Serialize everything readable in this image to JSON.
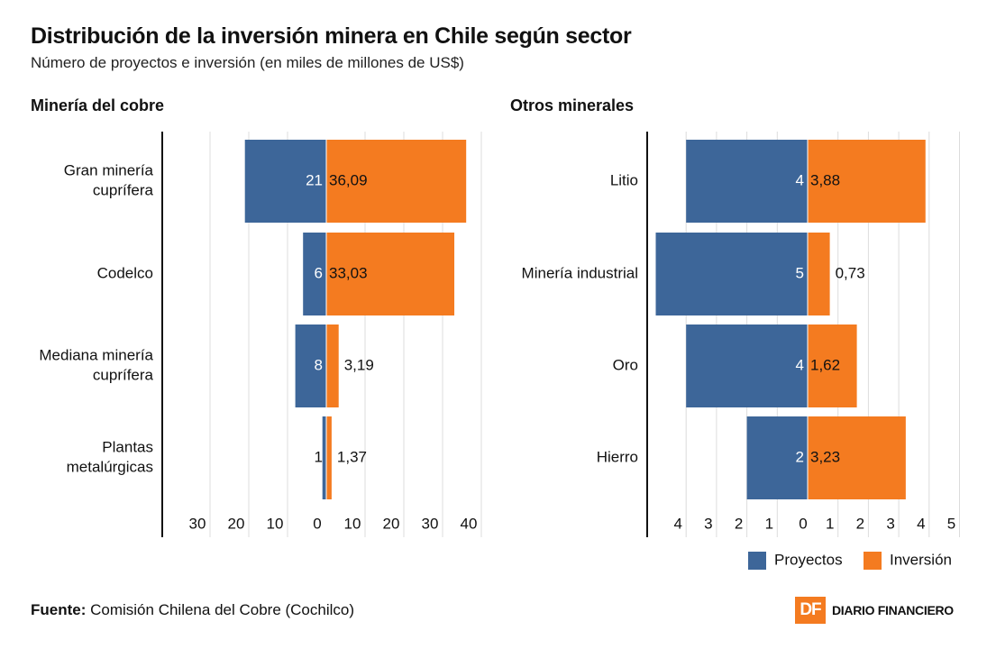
{
  "title": "Distribución de la inversión minera en Chile según sector",
  "subtitle": "Número de proyectos e inversión (en miles de millones de US$)",
  "source_label": "Fuente:",
  "source_text": " Comisión Chilena del Cobre (Cochilco)",
  "logo": {
    "mark": "DF",
    "name": "DIARIO FINANCIERO"
  },
  "legend": [
    {
      "label": "Proyectos",
      "color": "#3d6699"
    },
    {
      "label": "Inversión",
      "color": "#f47b20"
    }
  ],
  "chart_data": [
    {
      "type": "bar",
      "orientation": "diverging-horizontal",
      "title": "Minería del cobre",
      "categories": [
        "Gran minería\ncuprífera",
        "Codelco",
        "Mediana minería\ncuprífera",
        "Plantas\nmetalúrgicas"
      ],
      "series": [
        {
          "name": "Proyectos",
          "values": [
            21,
            6,
            8,
            1
          ],
          "labels": [
            "21",
            "6",
            "8",
            "1"
          ],
          "color": "#3d6699",
          "side": "left"
        },
        {
          "name": "Inversión",
          "values": [
            36.09,
            33.03,
            3.19,
            1.37
          ],
          "labels": [
            "36,09",
            "33,03",
            "3,19",
            "1,37"
          ],
          "color": "#f47b20",
          "side": "right"
        }
      ],
      "xlim": [
        -42,
        40
      ],
      "ticks": [
        -30,
        -20,
        -10,
        0,
        10,
        20,
        30,
        40
      ],
      "tick_labels": [
        "30",
        "20",
        "10",
        "0",
        "10",
        "20",
        "30",
        "40"
      ],
      "grid": true
    },
    {
      "type": "bar",
      "orientation": "diverging-horizontal",
      "title": "Otros minerales",
      "categories": [
        "Litio",
        "Minería industrial",
        "Oro",
        "Hierro"
      ],
      "series": [
        {
          "name": "Proyectos",
          "values": [
            4,
            5,
            4,
            2
          ],
          "labels": [
            "4",
            "5",
            "4",
            "2"
          ],
          "color": "#3d6699",
          "side": "left"
        },
        {
          "name": "Inversión",
          "values": [
            3.88,
            0.73,
            1.62,
            3.23
          ],
          "labels": [
            "3,88",
            "0,73",
            "1,62",
            "3,23"
          ],
          "color": "#f47b20",
          "side": "right"
        }
      ],
      "xlim": [
        -5,
        5
      ],
      "ticks": [
        -4,
        -3,
        -2,
        -1,
        0,
        1,
        2,
        3,
        4,
        5
      ],
      "tick_labels": [
        "4",
        "3",
        "2",
        "1",
        "0",
        "1",
        "2",
        "3",
        "4",
        "5"
      ],
      "grid": true
    }
  ]
}
